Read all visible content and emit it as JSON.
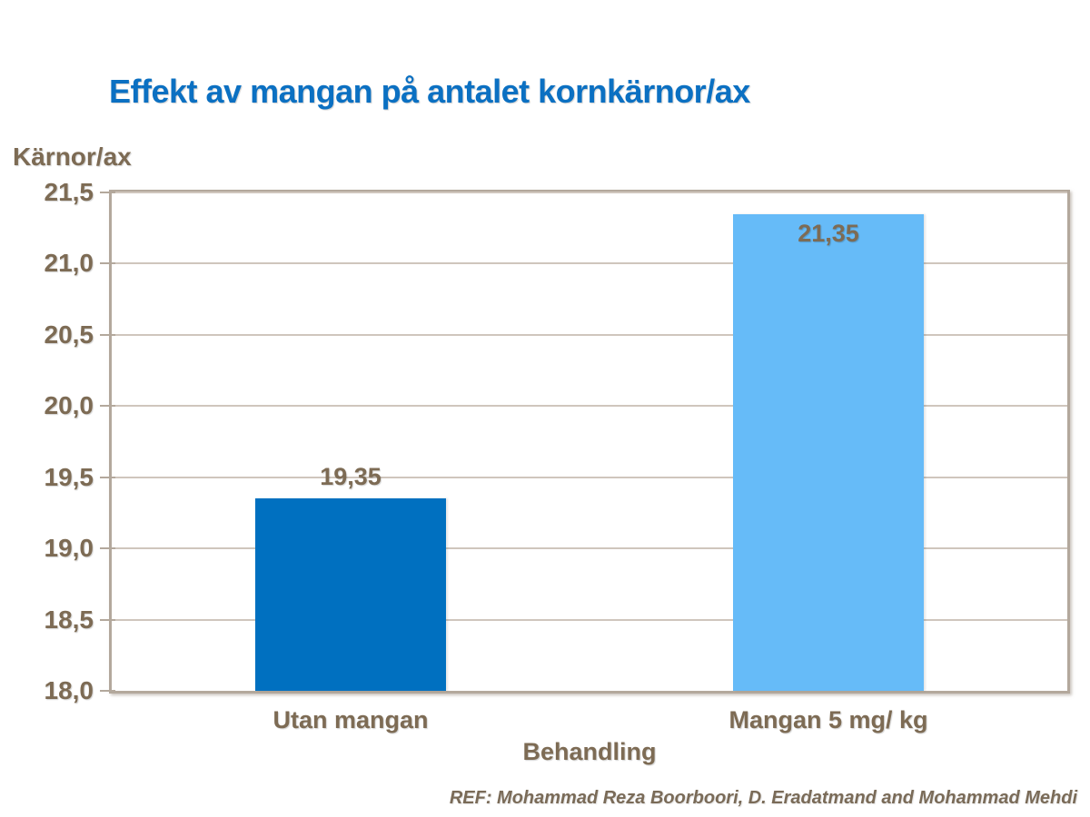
{
  "chart_data": {
    "type": "bar",
    "title": "Effekt av mangan på antalet kornkärnor/ax",
    "ylabel": "Kärnor/ax",
    "xlabel": "Behandling",
    "categories": [
      "Utan mangan",
      "Mangan 5 mg/ kg"
    ],
    "values": [
      19.35,
      21.35
    ],
    "value_labels": [
      "19,35",
      "21,35"
    ],
    "value_label_placement": [
      "above-bar",
      "inside-bar-top"
    ],
    "bar_colors": [
      "#0070c0",
      "#66bbf8"
    ],
    "ylim": [
      18.0,
      21.5
    ],
    "ytick_step": 0.5,
    "yticks": [
      "18,0",
      "18,5",
      "19,0",
      "19,5",
      "20,0",
      "20,5",
      "21,0",
      "21,5"
    ],
    "grid": true,
    "legend": "none"
  },
  "footer": {
    "text": "REF: Mohammad Reza Boorboori, D. Eradatmand and Mohammad Mehdi"
  },
  "colors": {
    "title-blue": "#0b70c2",
    "label-brown": "#7d6b54",
    "footer-brown": "#7a6b58",
    "frame": "#b3a89c",
    "gridline": "#cfc6bd",
    "bg": "#ffffff"
  }
}
